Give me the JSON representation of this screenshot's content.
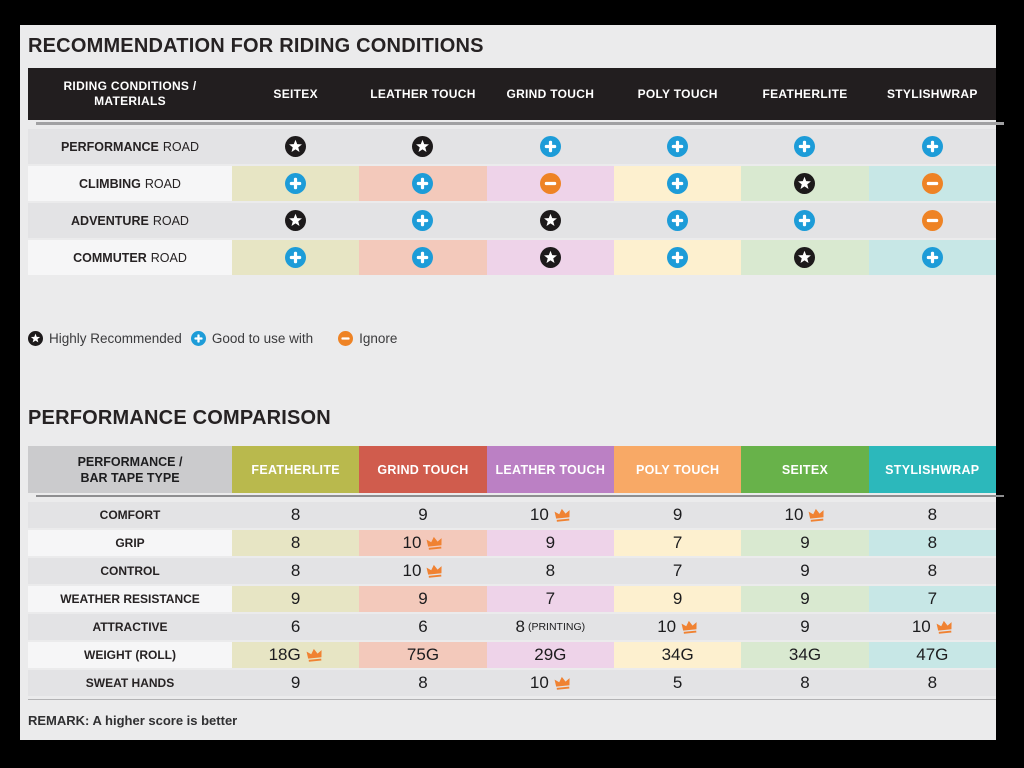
{
  "palette": {
    "accent_blue": "#1d9cd8",
    "accent_orange": "#ee8325",
    "icon_black": "#1d1a1b",
    "crown_orange": "#f08232",
    "header_dark": "#221e1f",
    "row_gray": "#e3e3e5",
    "row_light": "#f6f6f7",
    "page_bg": "#ebebec",
    "frame": "#000000",
    "tints": [
      "#e7e5c4",
      "#f3c9bb",
      "#eed3e9",
      "#fdf0cf",
      "#d9e9d0",
      "#c7e7e6"
    ]
  },
  "section1": {
    "title": "RECOMMENDATION FOR RIDING CONDITIONS",
    "table": {
      "header_label": "RIDING CONDITIONS / MATERIALS",
      "columns": [
        "SEITEX",
        "LEATHER TOUCH",
        "GRIND TOUCH",
        "POLY TOUCH",
        "FEATHERLITE",
        "STYLISHWRAP"
      ],
      "rows": [
        {
          "label_bold": "PERFORMANCE",
          "label_rest": "ROAD",
          "cells": [
            "star",
            "star",
            "plus",
            "plus",
            "plus",
            "plus"
          ]
        },
        {
          "label_bold": "CLIMBING",
          "label_rest": "ROAD",
          "cells": [
            "plus",
            "plus",
            "minus",
            "plus",
            "star",
            "minus"
          ]
        },
        {
          "label_bold": "ADVENTURE",
          "label_rest": "ROAD",
          "cells": [
            "star",
            "plus",
            "star",
            "plus",
            "plus",
            "minus"
          ]
        },
        {
          "label_bold": "COMMUTER",
          "label_rest": "ROAD",
          "cells": [
            "plus",
            "plus",
            "star",
            "plus",
            "star",
            "plus"
          ]
        }
      ]
    },
    "legend": [
      {
        "icon": "star",
        "label": "Highly Recommended"
      },
      {
        "icon": "plus",
        "label": "Good to use with"
      },
      {
        "icon": "minus",
        "label": "Ignore"
      }
    ]
  },
  "section2": {
    "title": "PERFORMANCE COMPARISON",
    "table": {
      "header_label": "PERFORMANCE / BAR TAPE TYPE",
      "columns": [
        {
          "label": "FEATHERLITE",
          "color": "#b9b94d"
        },
        {
          "label": "GRIND TOUCH",
          "color": "#d05c4d"
        },
        {
          "label": "LEATHER TOUCH",
          "color": "#bb80c4"
        },
        {
          "label": "POLY TOUCH",
          "color": "#f8a966"
        },
        {
          "label": "SEITEX",
          "color": "#68b24a"
        },
        {
          "label": "STYLISHWRAP",
          "color": "#2cb8bb"
        }
      ],
      "rows": [
        {
          "label": "COMFORT",
          "cells": [
            {
              "value": "8"
            },
            {
              "value": "9"
            },
            {
              "value": "10",
              "crown": true
            },
            {
              "value": "9"
            },
            {
              "value": "10",
              "crown": true
            },
            {
              "value": "8"
            }
          ]
        },
        {
          "label": "GRIP",
          "cells": [
            {
              "value": "8"
            },
            {
              "value": "10",
              "crown": true
            },
            {
              "value": "9"
            },
            {
              "value": "7"
            },
            {
              "value": "9"
            },
            {
              "value": "8"
            }
          ]
        },
        {
          "label": "CONTROL",
          "cells": [
            {
              "value": "8"
            },
            {
              "value": "10",
              "crown": true
            },
            {
              "value": "8"
            },
            {
              "value": "7"
            },
            {
              "value": "9"
            },
            {
              "value": "8"
            }
          ]
        },
        {
          "label": "WEATHER RESISTANCE",
          "cells": [
            {
              "value": "9"
            },
            {
              "value": "9"
            },
            {
              "value": "7"
            },
            {
              "value": "9"
            },
            {
              "value": "9"
            },
            {
              "value": "7"
            }
          ]
        },
        {
          "label": "ATTRACTIVE",
          "cells": [
            {
              "value": "6"
            },
            {
              "value": "6"
            },
            {
              "value": "8",
              "suffix": "(PRINTING)"
            },
            {
              "value": "10",
              "crown": true
            },
            {
              "value": "9"
            },
            {
              "value": "10",
              "crown": true
            }
          ]
        },
        {
          "label": "WEIGHT (ROLL)",
          "cells": [
            {
              "value": "18G",
              "crown": true
            },
            {
              "value": "75G"
            },
            {
              "value": "29G"
            },
            {
              "value": "34G"
            },
            {
              "value": "34G"
            },
            {
              "value": "47G"
            }
          ]
        },
        {
          "label": "SWEAT HANDS",
          "cells": [
            {
              "value": "9"
            },
            {
              "value": "8"
            },
            {
              "value": "10",
              "crown": true
            },
            {
              "value": "5"
            },
            {
              "value": "8"
            },
            {
              "value": "8"
            }
          ]
        }
      ]
    },
    "remark": "REMARK: A higher score is better"
  },
  "chart_data": [
    {
      "type": "table",
      "title": "RECOMMENDATION FOR RIDING CONDITIONS",
      "row_header": "RIDING CONDITIONS / MATERIALS",
      "columns": [
        "SEITEX",
        "LEATHER TOUCH",
        "GRIND TOUCH",
        "POLY TOUCH",
        "FEATHERLITE",
        "STYLISHWRAP"
      ],
      "rows": [
        "PERFORMANCE ROAD",
        "CLIMBING ROAD",
        "ADVENTURE ROAD",
        "COMMUTER ROAD"
      ],
      "values": [
        [
          "highly_recommended",
          "highly_recommended",
          "good_to_use_with",
          "good_to_use_with",
          "good_to_use_with",
          "good_to_use_with"
        ],
        [
          "good_to_use_with",
          "good_to_use_with",
          "ignore",
          "good_to_use_with",
          "highly_recommended",
          "ignore"
        ],
        [
          "highly_recommended",
          "good_to_use_with",
          "highly_recommended",
          "good_to_use_with",
          "good_to_use_with",
          "ignore"
        ],
        [
          "good_to_use_with",
          "good_to_use_with",
          "highly_recommended",
          "good_to_use_with",
          "highly_recommended",
          "good_to_use_with"
        ]
      ],
      "legend": {
        "star": "Highly Recommended",
        "plus": "Good to use with",
        "minus": "Ignore"
      }
    },
    {
      "type": "table",
      "title": "PERFORMANCE COMPARISON",
      "row_header": "PERFORMANCE / BAR TAPE TYPE",
      "columns": [
        "FEATHERLITE",
        "GRIND TOUCH",
        "LEATHER TOUCH",
        "POLY TOUCH",
        "SEITEX",
        "STYLISHWRAP"
      ],
      "rows": [
        "COMFORT",
        "GRIP",
        "CONTROL",
        "WEATHER RESISTANCE",
        "ATTRACTIVE",
        "WEIGHT (ROLL)",
        "SWEAT HANDS"
      ],
      "values": [
        [
          "8",
          "9",
          "10 (best)",
          "9",
          "10 (best)",
          "8"
        ],
        [
          "8",
          "10 (best)",
          "9",
          "7",
          "9",
          "8"
        ],
        [
          "8",
          "10 (best)",
          "8",
          "7",
          "9",
          "8"
        ],
        [
          "9",
          "9",
          "7",
          "9",
          "9",
          "7"
        ],
        [
          "6",
          "6",
          "8 (PRINTING)",
          "10 (best)",
          "9",
          "10 (best)"
        ],
        [
          "18G (best)",
          "75G",
          "29G",
          "34G",
          "34G",
          "47G"
        ],
        [
          "9",
          "8",
          "10 (best)",
          "5",
          "8",
          "8"
        ]
      ],
      "note": "REMARK: A higher score is better"
    }
  ]
}
